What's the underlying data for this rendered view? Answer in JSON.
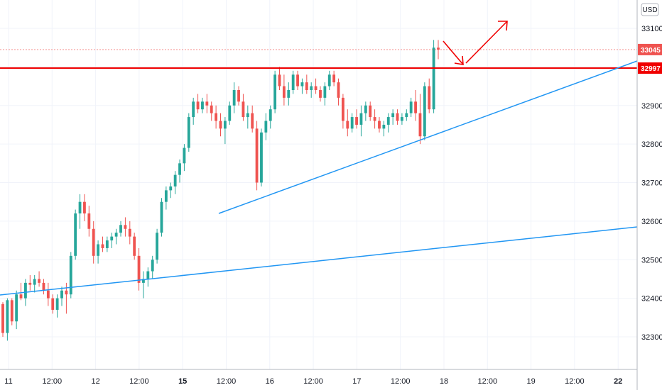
{
  "chart_data": {
    "type": "candlestick",
    "currency": "USD",
    "y_range": [
      32200,
      33200
    ],
    "y_ticks": [
      32300,
      32400,
      32500,
      32600,
      32700,
      32800,
      32900,
      33000,
      33100
    ],
    "x_ticks": [
      {
        "label": "11",
        "bold": false
      },
      {
        "label": "12:00",
        "bold": false
      },
      {
        "label": "12",
        "bold": false
      },
      {
        "label": "12:00",
        "bold": false
      },
      {
        "label": "15",
        "bold": true
      },
      {
        "label": "12:00",
        "bold": false
      },
      {
        "label": "16",
        "bold": false
      },
      {
        "label": "12:00",
        "bold": false
      },
      {
        "label": "17",
        "bold": false
      },
      {
        "label": "12:00",
        "bold": false
      },
      {
        "label": "18",
        "bold": false
      },
      {
        "label": "12:00",
        "bold": false
      },
      {
        "label": "19",
        "bold": false
      },
      {
        "label": "12:00",
        "bold": false
      },
      {
        "label": "22",
        "bold": true
      }
    ],
    "price_labels": [
      {
        "value": 33045,
        "text": "33045",
        "color": "#ef5350"
      },
      {
        "value": 32997,
        "text": "32997",
        "color": "#f00000"
      }
    ],
    "candles": [
      [
        32385,
        32390,
        32300,
        32310
      ],
      [
        32310,
        32400,
        32290,
        32395
      ],
      [
        32395,
        32400,
        32330,
        32340
      ],
      [
        32340,
        32420,
        32320,
        32410
      ],
      [
        32410,
        32440,
        32395,
        32400
      ],
      [
        32400,
        32450,
        32380,
        32440
      ],
      [
        32440,
        32460,
        32420,
        32435
      ],
      [
        32435,
        32460,
        32415,
        32450
      ],
      [
        32450,
        32470,
        32430,
        32440
      ],
      [
        32440,
        32450,
        32410,
        32420
      ],
      [
        32420,
        32440,
        32380,
        32400
      ],
      [
        32400,
        32410,
        32360,
        32370
      ],
      [
        32370,
        32410,
        32350,
        32400
      ],
      [
        32400,
        32430,
        32380,
        32420
      ],
      [
        32420,
        32440,
        32360,
        32410
      ],
      [
        32410,
        32520,
        32400,
        32510
      ],
      [
        32510,
        32630,
        32500,
        32620
      ],
      [
        32620,
        32670,
        32580,
        32650
      ],
      [
        32650,
        32670,
        32600,
        32620
      ],
      [
        32620,
        32640,
        32560,
        32580
      ],
      [
        32580,
        32600,
        32490,
        32510
      ],
      [
        32510,
        32550,
        32490,
        32540
      ],
      [
        32540,
        32560,
        32520,
        32530
      ],
      [
        32530,
        32560,
        32520,
        32550
      ],
      [
        32550,
        32570,
        32530,
        32560
      ],
      [
        32560,
        32580,
        32540,
        32570
      ],
      [
        32570,
        32600,
        32560,
        32590
      ],
      [
        32590,
        32610,
        32560,
        32580
      ],
      [
        32580,
        32600,
        32540,
        32560
      ],
      [
        32560,
        32570,
        32500,
        32510
      ],
      [
        32510,
        32530,
        32420,
        32440
      ],
      [
        32440,
        32470,
        32400,
        32450
      ],
      [
        32450,
        32480,
        32430,
        32470
      ],
      [
        32470,
        32510,
        32450,
        32500
      ],
      [
        32500,
        32580,
        32490,
        32570
      ],
      [
        32570,
        32660,
        32560,
        32650
      ],
      [
        32650,
        32690,
        32630,
        32680
      ],
      [
        32680,
        32700,
        32660,
        32690
      ],
      [
        32690,
        32730,
        32670,
        32720
      ],
      [
        32720,
        32760,
        32700,
        32750
      ],
      [
        32750,
        32800,
        32730,
        32790
      ],
      [
        32790,
        32880,
        32780,
        32870
      ],
      [
        32870,
        32920,
        32850,
        32910
      ],
      [
        32910,
        32930,
        32880,
        32890
      ],
      [
        32890,
        32920,
        32880,
        32910
      ],
      [
        32910,
        32930,
        32880,
        32900
      ],
      [
        32900,
        32910,
        32860,
        32880
      ],
      [
        32880,
        32900,
        32840,
        32860
      ],
      [
        32860,
        32880,
        32820,
        32840
      ],
      [
        32840,
        32870,
        32800,
        32860
      ],
      [
        32860,
        32910,
        32850,
        32900
      ],
      [
        32900,
        32960,
        32880,
        32940
      ],
      [
        32940,
        32950,
        32900,
        32910
      ],
      [
        32910,
        32930,
        32860,
        32870
      ],
      [
        32870,
        32900,
        32840,
        32880
      ],
      [
        32880,
        32900,
        32830,
        32840
      ],
      [
        32840,
        32860,
        32680,
        32700
      ],
      [
        32700,
        32840,
        32690,
        32830
      ],
      [
        32830,
        32880,
        32810,
        32860
      ],
      [
        32860,
        32900,
        32840,
        32890
      ],
      [
        32890,
        32990,
        32880,
        32980
      ],
      [
        32980,
        33000,
        32940,
        32950
      ],
      [
        32950,
        32980,
        32900,
        32920
      ],
      [
        32920,
        32960,
        32900,
        32940
      ],
      [
        32940,
        32990,
        32930,
        32980
      ],
      [
        32980,
        32990,
        32940,
        32950
      ],
      [
        32950,
        32970,
        32930,
        32960
      ],
      [
        32960,
        32980,
        32930,
        32940
      ],
      [
        32940,
        32960,
        32920,
        32950
      ],
      [
        32950,
        32970,
        32930,
        32940
      ],
      [
        32940,
        32950,
        32910,
        32920
      ],
      [
        32920,
        32960,
        32900,
        32950
      ],
      [
        32950,
        32990,
        32940,
        32980
      ],
      [
        32980,
        32990,
        32950,
        32960
      ],
      [
        32960,
        32970,
        32900,
        32920
      ],
      [
        32920,
        32930,
        32840,
        32860
      ],
      [
        32860,
        32890,
        32820,
        32840
      ],
      [
        32840,
        32880,
        32830,
        32870
      ],
      [
        32870,
        32890,
        32840,
        32850
      ],
      [
        32850,
        32900,
        32820,
        32880
      ],
      [
        32880,
        32910,
        32860,
        32900
      ],
      [
        32900,
        32910,
        32860,
        32870
      ],
      [
        32870,
        32890,
        32840,
        32860
      ],
      [
        32860,
        32870,
        32830,
        32840
      ],
      [
        32840,
        32860,
        32820,
        32850
      ],
      [
        32850,
        32880,
        32830,
        32870
      ],
      [
        32870,
        32890,
        32850,
        32880
      ],
      [
        32880,
        32890,
        32850,
        32860
      ],
      [
        32860,
        32880,
        32850,
        32870
      ],
      [
        32870,
        32890,
        32860,
        32880
      ],
      [
        32880,
        32920,
        32870,
        32910
      ],
      [
        32910,
        32940,
        32860,
        32880
      ],
      [
        32880,
        32930,
        32800,
        32820
      ],
      [
        32820,
        32960,
        32810,
        32950
      ],
      [
        32950,
        32970,
        32880,
        32890
      ],
      [
        32890,
        33070,
        32880,
        33050
      ],
      [
        33050,
        33070,
        33020,
        33045
      ]
    ],
    "horizontal_levels": [
      {
        "value": 32997,
        "color": "#f00000",
        "width": 2
      },
      {
        "value": 33045,
        "color": "#ef5350",
        "width": 0.6,
        "dash": true
      }
    ]
  }
}
